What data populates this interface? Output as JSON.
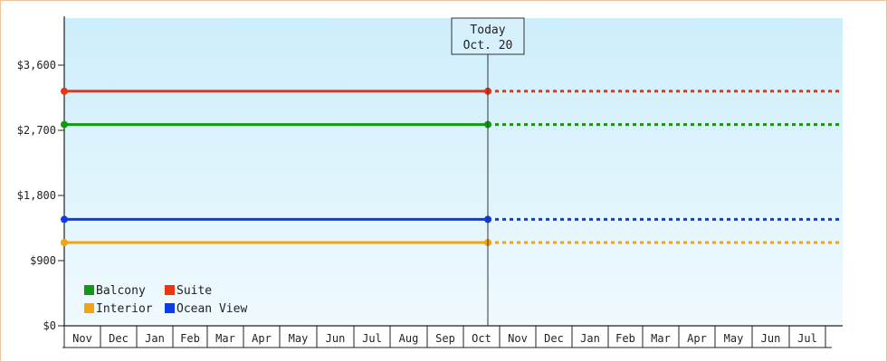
{
  "chart_data": {
    "type": "line",
    "title": "",
    "xlabel": "",
    "ylabel": "",
    "ylim": [
      0,
      4300
    ],
    "y_ticks": [
      {
        "value": 0,
        "label": "$0"
      },
      {
        "value": 900,
        "label": "$900"
      },
      {
        "value": 1800,
        "label": "$1,800"
      },
      {
        "value": 2700,
        "label": "$2,700"
      },
      {
        "value": 3600,
        "label": "$3,600"
      }
    ],
    "months": [
      "Nov",
      "Dec",
      "Jan",
      "Feb",
      "Mar",
      "Apr",
      "May",
      "Jun",
      "Jul",
      "Aug",
      "Sep",
      "Oct",
      "Nov",
      "Dec",
      "Jan",
      "Feb",
      "Mar",
      "Apr",
      "May",
      "Jun",
      "Jul"
    ],
    "today_index": 11,
    "today": {
      "line1": "Today",
      "line2": "Oct. 20"
    },
    "grid": false,
    "legend_position": "bottom-left",
    "series": [
      {
        "name": "Balcony",
        "value": 2780,
        "color": "#119911"
      },
      {
        "name": "Suite",
        "value": 3240,
        "color": "#ee3311"
      },
      {
        "name": "Interior",
        "value": 1150,
        "color": "#f5a40f"
      },
      {
        "name": "Ocean View",
        "value": 1470,
        "color": "#0b3bef"
      }
    ],
    "background": {
      "top": "#cdeefb",
      "bottom": "#f0faff"
    }
  }
}
